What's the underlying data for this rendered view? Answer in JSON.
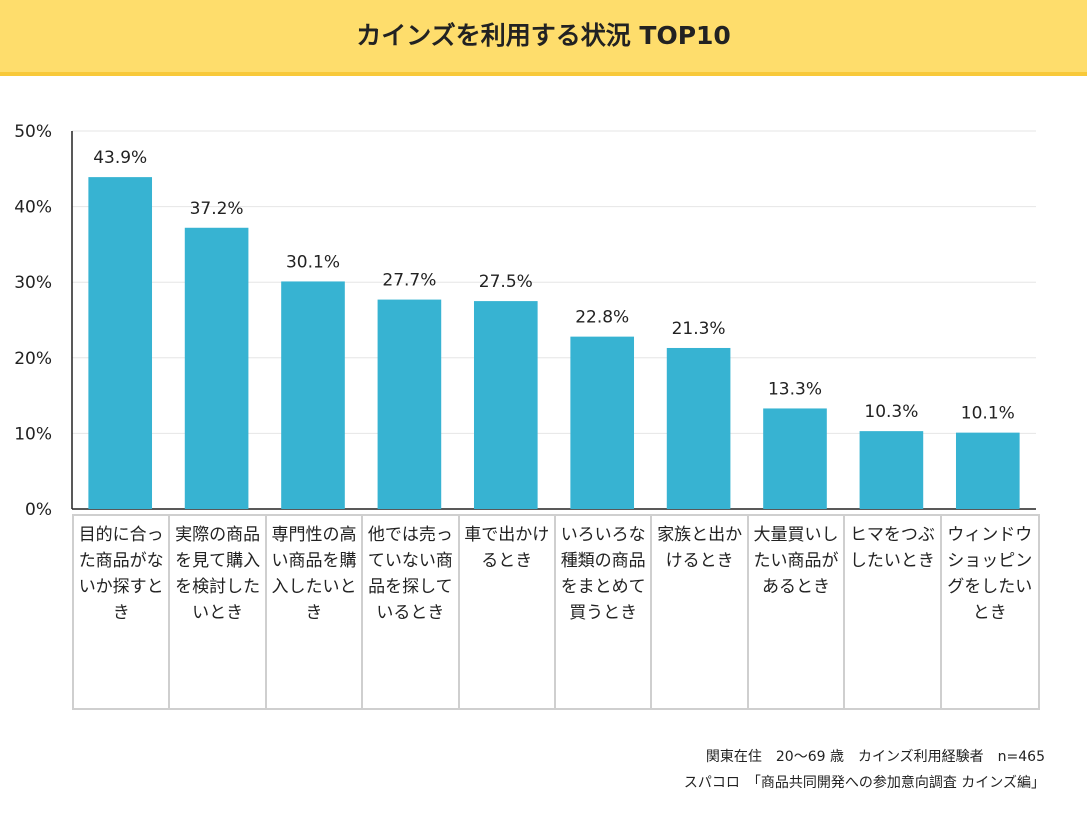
{
  "header": {
    "title": "カインズを利用する状況 TOP10"
  },
  "chart_data": {
    "type": "bar",
    "title": "カインズを利用する状況 TOP10",
    "categories": [
      "目的に合った商品がないか探すとき",
      "実際の商品を見て購入を検討したいとき",
      "専門性の高い商品を購入したいとき",
      "他では売っていない商品を探しているとき",
      "車で出かけるとき",
      "いろいろな種類の商品をまとめて買うとき",
      "家族と出かけるとき",
      "大量買いしたい商品があるとき",
      "ヒマをつぶしたいとき",
      "ウィンドウショッピングをしたいとき"
    ],
    "values": [
      43.9,
      37.2,
      30.1,
      27.7,
      27.5,
      22.8,
      21.3,
      13.3,
      10.3,
      10.1
    ],
    "value_labels": [
      "43.9%",
      "37.2%",
      "30.1%",
      "27.7%",
      "27.5%",
      "22.8%",
      "21.3%",
      "13.3%",
      "10.3%",
      "10.1%"
    ],
    "ylim": [
      0,
      50
    ],
    "yticks": [
      0,
      10,
      20,
      30,
      40,
      50
    ],
    "ytick_labels": [
      "0%",
      "10%",
      "20%",
      "30%",
      "40%",
      "50%"
    ],
    "xlabel": "",
    "ylabel": "",
    "grid": true,
    "bar_color": "#37b3d2"
  },
  "footnotes": {
    "line1": "関東在住　20～69 歳　カインズ利用経験者　n=465",
    "line2": "スパコロ　「商品共同開発への参加意向調査 カインズ編」"
  },
  "colors": {
    "title_band": "#fedd6c",
    "title_border": "#f8c93a",
    "bar": "#37b3d2",
    "grid": "#e6e6e6",
    "table_border": "#cfcfcf"
  }
}
